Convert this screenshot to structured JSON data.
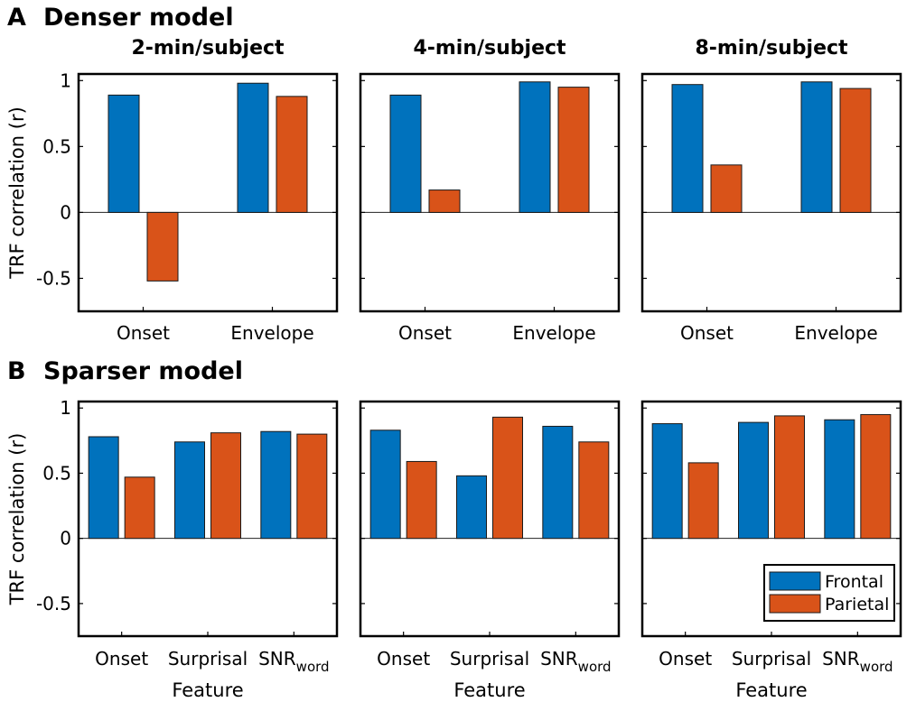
{
  "colors": {
    "frontal": "#0072BD",
    "parietal": "#D95319"
  },
  "panels": {
    "a": {
      "letter": "A",
      "title": "Denser model"
    },
    "b": {
      "letter": "B",
      "title": "Sparser model"
    }
  },
  "legend": {
    "entries": [
      "Frontal",
      "Parietal"
    ],
    "placement": "bottom-right of last subplot in row B"
  },
  "chart_data": [
    {
      "type": "bar",
      "panel": "A",
      "title": "2-min/subject",
      "categories": [
        "Onset",
        "Envelope"
      ],
      "series": [
        {
          "name": "Frontal",
          "values": [
            0.89,
            0.98
          ]
        },
        {
          "name": "Parietal",
          "values": [
            -0.52,
            0.88
          ]
        }
      ],
      "ylabel": "TRF correlation (r)",
      "xlabel": "",
      "ylim": [
        -0.75,
        1.05
      ],
      "yticks": [
        -0.5,
        0,
        0.5,
        1
      ],
      "ytick_labels": [
        "-0.5",
        "0",
        "0.5",
        "1"
      ]
    },
    {
      "type": "bar",
      "panel": "A",
      "title": "4-min/subject",
      "categories": [
        "Onset",
        "Envelope"
      ],
      "series": [
        {
          "name": "Frontal",
          "values": [
            0.89,
            0.99
          ]
        },
        {
          "name": "Parietal",
          "values": [
            0.17,
            0.95
          ]
        }
      ],
      "ylabel": "",
      "xlabel": "",
      "ylim": [
        -0.75,
        1.05
      ]
    },
    {
      "type": "bar",
      "panel": "A",
      "title": "8-min/subject",
      "categories": [
        "Onset",
        "Envelope"
      ],
      "series": [
        {
          "name": "Frontal",
          "values": [
            0.97,
            0.99
          ]
        },
        {
          "name": "Parietal",
          "values": [
            0.36,
            0.94
          ]
        }
      ],
      "ylabel": "",
      "xlabel": "",
      "ylim": [
        -0.75,
        1.05
      ]
    },
    {
      "type": "bar",
      "panel": "B",
      "title": "",
      "categories": [
        "Onset",
        "Surprisal",
        "SNR_word"
      ],
      "category_labels": [
        {
          "main": "Onset",
          "sub": ""
        },
        {
          "main": "Surprisal",
          "sub": ""
        },
        {
          "main": "SNR",
          "sub": "word"
        }
      ],
      "series": [
        {
          "name": "Frontal",
          "values": [
            0.78,
            0.74,
            0.82
          ]
        },
        {
          "name": "Parietal",
          "values": [
            0.47,
            0.81,
            0.8
          ]
        }
      ],
      "ylabel": "TRF correlation (r)",
      "xlabel": "Feature",
      "ylim": [
        -0.75,
        1.05
      ],
      "yticks": [
        -0.5,
        0,
        0.5,
        1
      ],
      "ytick_labels": [
        "-0.5",
        "0",
        "0.5",
        "1"
      ]
    },
    {
      "type": "bar",
      "panel": "B",
      "title": "",
      "categories": [
        "Onset",
        "Surprisal",
        "SNR_word"
      ],
      "category_labels": [
        {
          "main": "Onset",
          "sub": ""
        },
        {
          "main": "Surprisal",
          "sub": ""
        },
        {
          "main": "SNR",
          "sub": "word"
        }
      ],
      "series": [
        {
          "name": "Frontal",
          "values": [
            0.83,
            0.48,
            0.86
          ]
        },
        {
          "name": "Parietal",
          "values": [
            0.59,
            0.93,
            0.74
          ]
        }
      ],
      "ylabel": "",
      "xlabel": "Feature",
      "ylim": [
        -0.75,
        1.05
      ]
    },
    {
      "type": "bar",
      "panel": "B",
      "title": "",
      "categories": [
        "Onset",
        "Surprisal",
        "SNR_word"
      ],
      "category_labels": [
        {
          "main": "Onset",
          "sub": ""
        },
        {
          "main": "Surprisal",
          "sub": ""
        },
        {
          "main": "SNR",
          "sub": "word"
        }
      ],
      "series": [
        {
          "name": "Frontal",
          "values": [
            0.88,
            0.89,
            0.91
          ]
        },
        {
          "name": "Parietal",
          "values": [
            0.58,
            0.94,
            0.95
          ]
        }
      ],
      "ylabel": "",
      "xlabel": "Feature",
      "ylim": [
        -0.75,
        1.05
      ],
      "has_legend": true
    }
  ]
}
